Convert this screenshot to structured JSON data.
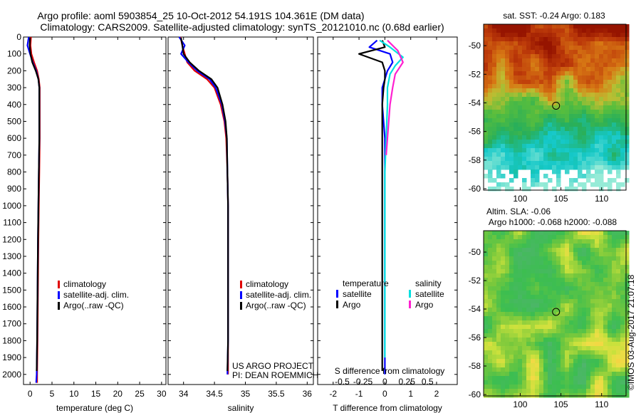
{
  "title": {
    "line1": "Argo profile: aoml 5903854_25 10-Oct-2012 54.191S 104.361E (DM data)",
    "line2": "Climatology: CARS2009. Satellite-adjusted climatology: synTS_20121010.nc (0.68d earlier)"
  },
  "credit": {
    "line1": "US ARGO PROJECT",
    "line2": "PI: DEAN ROEMMICH"
  },
  "watermark": "©IMOS 03-Aug-2017 21:07:18",
  "colors": {
    "climatology": "#e00000",
    "satellite": "#0000ff",
    "argo": "#000000",
    "sat_salinity": "#00e0e0",
    "argo_salinity": "#ff20d0"
  },
  "chart_data": [
    {
      "type": "line",
      "name": "temperature-profile",
      "xlabel": "temperature (deg C)",
      "xlim": [
        -1.5,
        31
      ],
      "xticks": [
        0,
        5,
        10,
        15,
        20,
        25,
        30
      ],
      "ylim": [
        2060,
        0
      ],
      "yticks": [
        0,
        100,
        200,
        300,
        400,
        500,
        600,
        700,
        800,
        900,
        1000,
        1100,
        1200,
        1300,
        1400,
        1500,
        1600,
        1700,
        1800,
        1900,
        2000
      ],
      "legend": [
        "climatology",
        "satellite-adj. clim.",
        "Argo(..raw -QC)"
      ],
      "series": [
        {
          "name": "climatology",
          "color_key": "climatology",
          "x": [
            0.2,
            0.1,
            0.3,
            0.9,
            1.6,
            2.0,
            2.2,
            2.2,
            2.2,
            2.1,
            2.0,
            1.9,
            1.8,
            1.7,
            1.6,
            1.6
          ],
          "y": [
            0,
            50,
            100,
            150,
            200,
            250,
            300,
            400,
            600,
            800,
            1000,
            1200,
            1500,
            1800,
            2000,
            2050
          ]
        },
        {
          "name": "satellite-adj. clim.",
          "color_key": "satellite",
          "x": [
            -0.3,
            -0.6,
            0.0,
            0.6,
            1.4,
            1.9,
            2.1,
            2.1,
            2.1,
            2.0,
            1.9,
            1.8,
            1.7,
            1.6,
            1.5,
            1.4
          ],
          "y": [
            0,
            50,
            100,
            150,
            200,
            250,
            300,
            400,
            600,
            800,
            1000,
            1200,
            1500,
            1800,
            2000,
            2050
          ]
        },
        {
          "name": "Argo(..raw -QC)",
          "color_key": "argo",
          "x": [
            0.0,
            -0.1,
            0.1,
            0.5,
            1.3,
            1.9,
            2.1,
            2.1,
            2.1,
            2.0,
            1.9,
            1.8,
            1.7,
            1.6,
            1.5
          ],
          "y": [
            5,
            50,
            100,
            150,
            200,
            250,
            300,
            400,
            600,
            800,
            1000,
            1200,
            1500,
            1800,
            1980
          ]
        }
      ]
    },
    {
      "type": "line",
      "name": "salinity-profile",
      "xlabel": "salinity",
      "xlim": [
        33.75,
        36.1
      ],
      "xticks": [
        34,
        34.5,
        35,
        35.5,
        36
      ],
      "ylim": [
        2060,
        0
      ],
      "legend": [
        "climatology",
        "satellite-adj. clim.",
        "Argo(..raw -QC)"
      ],
      "series": [
        {
          "name": "climatology",
          "color_key": "climatology",
          "x": [
            33.95,
            33.98,
            34.02,
            34.06,
            34.18,
            34.38,
            34.5,
            34.6,
            34.66,
            34.69,
            34.71,
            34.72,
            34.72,
            34.72,
            34.72,
            34.72
          ],
          "y": [
            0,
            50,
            100,
            150,
            200,
            250,
            300,
            400,
            500,
            600,
            800,
            1000,
            1200,
            1500,
            1800,
            2000
          ]
        },
        {
          "name": "satellite-adj. clim.",
          "color_key": "satellite",
          "x": [
            33.93,
            34.02,
            33.96,
            34.08,
            34.22,
            34.42,
            34.52,
            34.62,
            34.67,
            34.7,
            34.71,
            34.72,
            34.72,
            34.72,
            34.72,
            34.71
          ],
          "y": [
            0,
            50,
            100,
            150,
            200,
            250,
            300,
            400,
            500,
            600,
            800,
            1000,
            1200,
            1500,
            1800,
            2000
          ]
        },
        {
          "name": "Argo(..raw -QC)",
          "color_key": "argo",
          "x": [
            33.96,
            33.98,
            34.0,
            34.1,
            34.25,
            34.45,
            34.55,
            34.63,
            34.68,
            34.7,
            34.71,
            34.72,
            34.72,
            34.72,
            34.72,
            34.71
          ],
          "y": [
            5,
            50,
            100,
            150,
            200,
            250,
            300,
            400,
            500,
            600,
            800,
            1000,
            1200,
            1500,
            1800,
            1980
          ]
        }
      ]
    },
    {
      "type": "line",
      "name": "difference-profile",
      "xlabel": "T difference from climatology",
      "xlabel_top": "S difference from climatology",
      "xlim": [
        -2.6,
        2.8
      ],
      "xticks": [
        -2,
        -1,
        0,
        1,
        2
      ],
      "top_ticks": [
        "-0.5",
        "-0.25",
        "0",
        "0.25",
        "0.5"
      ],
      "top_tick_positions": [
        -1.65,
        -0.85,
        0,
        0.85,
        1.65
      ],
      "ylim": [
        2060,
        0
      ],
      "legend": {
        "temperature": "temperature",
        "salinity": "salinity",
        "satellite": "satellite",
        "argo": "Argo"
      },
      "series": [
        {
          "name": "T satellite",
          "color_key": "satellite",
          "x": [
            -0.3,
            -0.6,
            0.2,
            0.3,
            0.1,
            0.0,
            -0.1,
            -0.1,
            0.0,
            0.0,
            0.0,
            0.0,
            0.0,
            0.0
          ],
          "y": [
            20,
            60,
            100,
            150,
            200,
            250,
            300,
            400,
            600,
            800,
            1000,
            1300,
            1600,
            2000
          ]
        },
        {
          "name": "T Argo",
          "color_key": "argo",
          "x": [
            -0.1,
            0.0,
            -1.0,
            -0.1,
            0.0,
            0.0,
            -0.05,
            -0.1,
            -0.1,
            -0.1,
            -0.1,
            -0.1,
            -0.1
          ],
          "y": [
            20,
            60,
            100,
            150,
            200,
            250,
            300,
            400,
            600,
            1000,
            1400,
            1800,
            1980
          ]
        },
        {
          "name": "S satellite",
          "color_key": "sat_salinity",
          "x": [
            -0.2,
            0.2,
            0.7,
            0.4,
            0.2,
            0.1,
            0.1,
            0.05,
            0.0,
            0.0,
            0.0,
            0.0
          ],
          "y": [
            20,
            60,
            120,
            170,
            220,
            300,
            400,
            600,
            800,
            1000,
            1500,
            1900
          ]
        },
        {
          "name": "S Argo",
          "color_key": "argo_salinity",
          "x": [
            0.1,
            0.5,
            0.7,
            0.4,
            0.3,
            0.2,
            0.15,
            0.1,
            0.05
          ],
          "y": [
            20,
            80,
            150,
            220,
            300,
            400,
            500,
            600,
            700
          ]
        }
      ]
    },
    {
      "type": "heatmap",
      "name": "sst-map",
      "title": "sat. SST: -0.24 Argo: 0.183",
      "xlim": [
        95.5,
        113
      ],
      "ylim": [
        -60.1,
        -48.5
      ],
      "xticks": [
        100,
        105,
        110
      ],
      "yticks": [
        -50,
        -52,
        -54,
        -56,
        -58,
        -60
      ],
      "marker": {
        "lon": 104.4,
        "lat": -54.2
      }
    },
    {
      "type": "heatmap",
      "name": "sla-map",
      "title_line1": "Altim. SLA: -0.06",
      "title_line2": "Argo h1000: -0.068 h2000: -0.088",
      "xlim": [
        95.5,
        113
      ],
      "ylim": [
        -60.1,
        -48.5
      ],
      "xticks": [
        100,
        105,
        110
      ],
      "yticks": [
        -50,
        -52,
        -54,
        -56,
        -58,
        -60
      ],
      "marker": {
        "lon": 104.4,
        "lat": -54.2
      }
    }
  ]
}
